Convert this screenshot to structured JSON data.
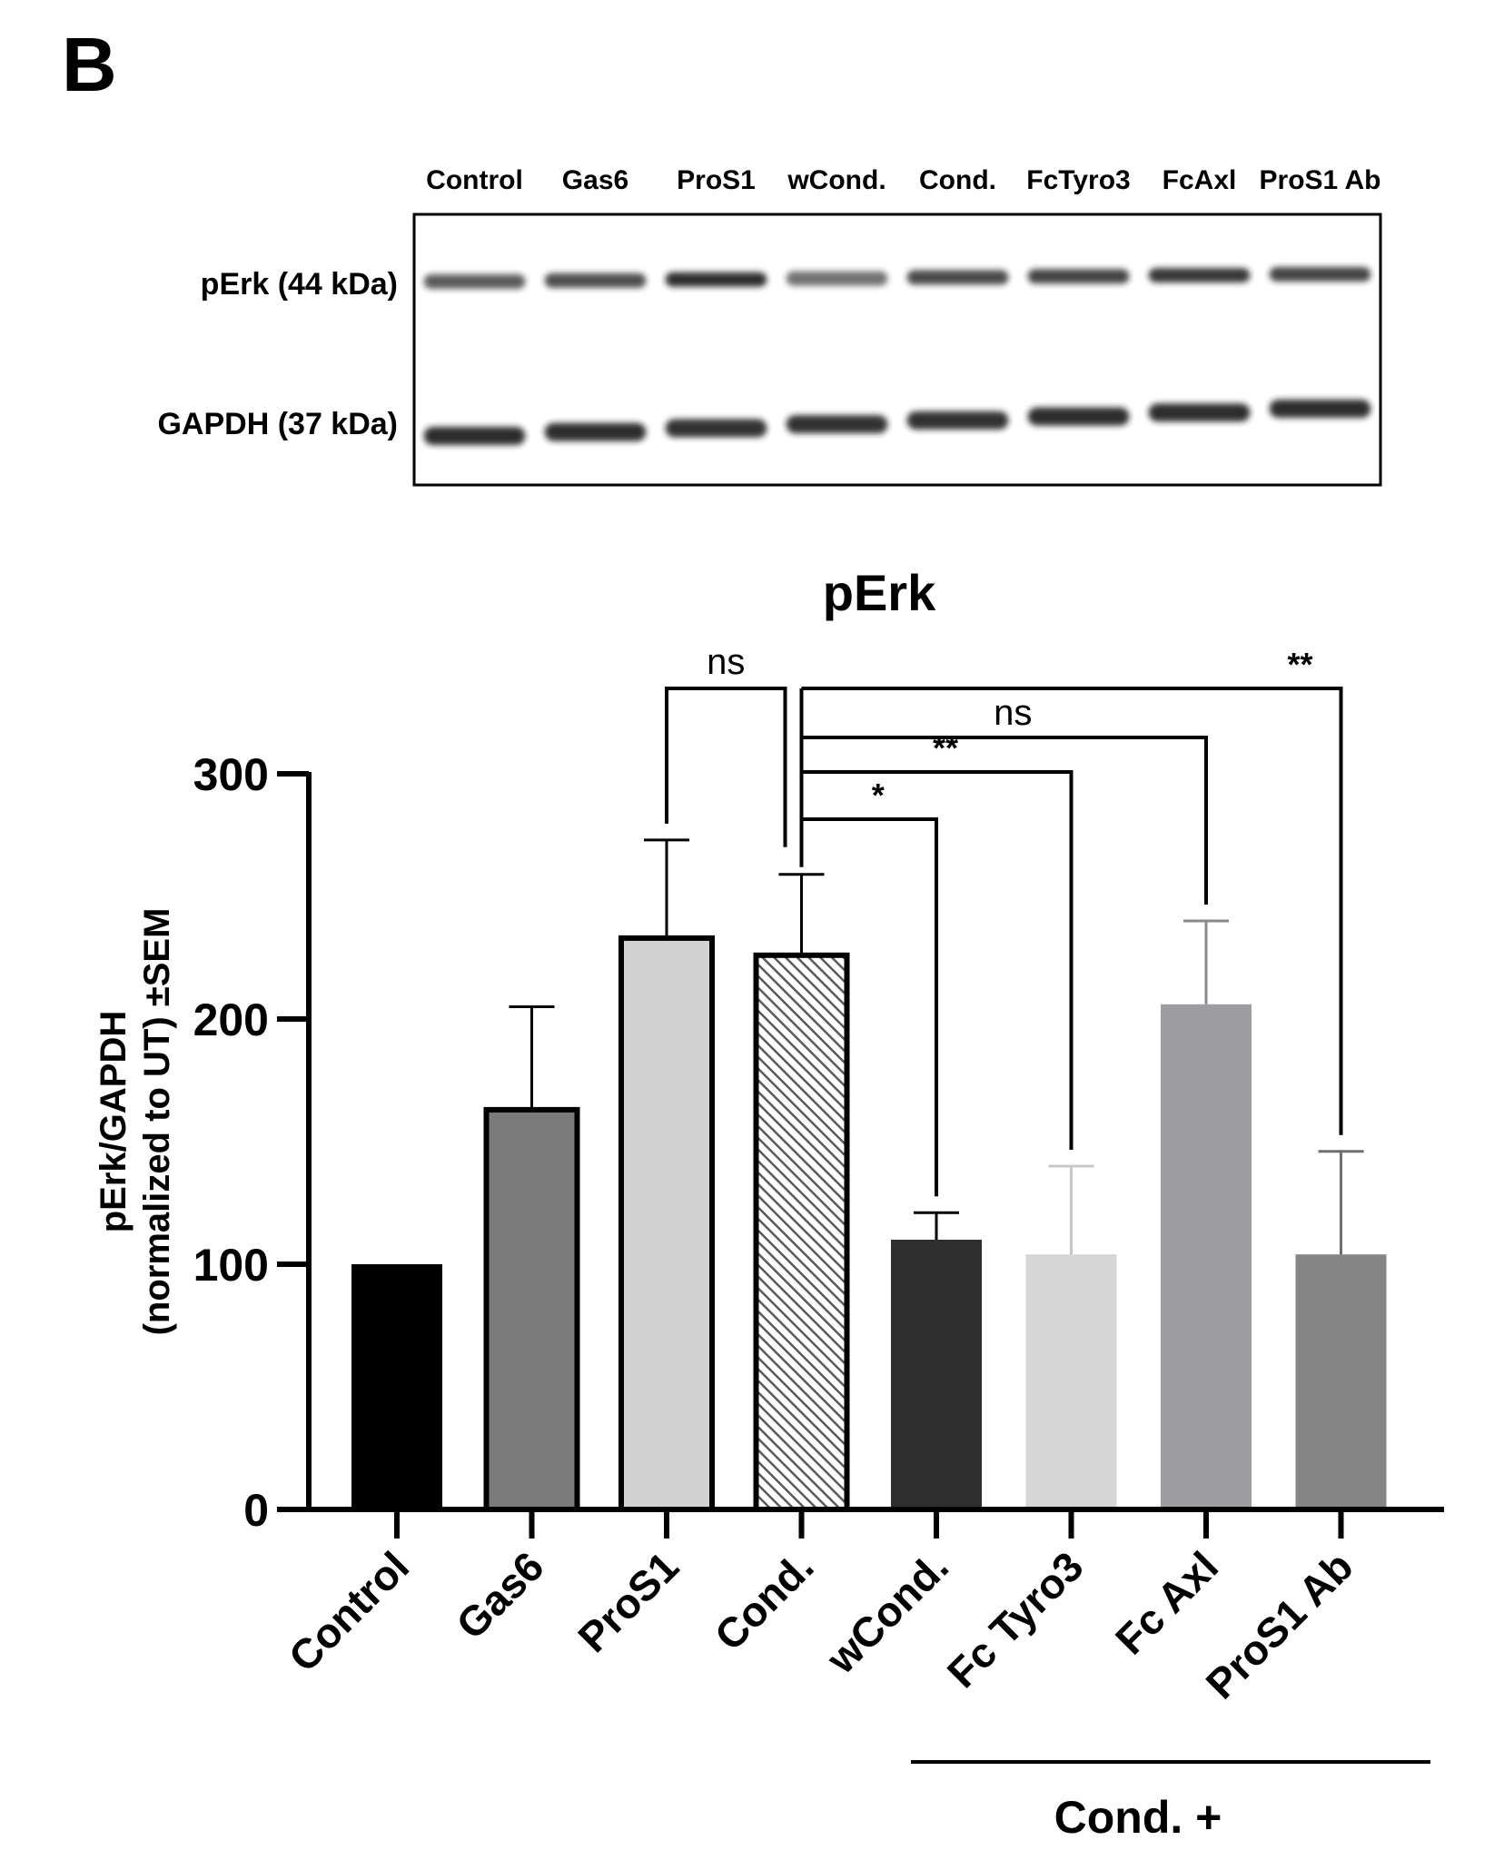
{
  "panel_label": "B",
  "colors": {
    "ink": "#000000",
    "control": "#000000",
    "gas6": "#7b7b7b",
    "pros1": "#d2d2d2",
    "cond_hatch_bg": "#ffffff",
    "cond_hatch_line": "#5a5a5a",
    "wcond": "#2e2e2e",
    "fctyro3": "#d6d6d6",
    "fcaxl": "#9e9ea2",
    "pros1ab": "#858585",
    "blot_band": "#1e1e1e"
  },
  "blot": {
    "lanes": [
      "Control",
      "Gas6",
      "ProS1",
      "wCond.",
      "Cond.",
      "FcTyro3",
      "FcAxl",
      "ProS1 Ab"
    ],
    "rows": [
      {
        "label": "pErk (44 kDa)",
        "intensity": [
          0.72,
          0.78,
          0.92,
          0.62,
          0.8,
          0.82,
          0.88,
          0.82
        ]
      },
      {
        "label": "GAPDH (37 kDa)",
        "intensity": [
          0.92,
          0.92,
          0.9,
          0.9,
          0.9,
          0.92,
          0.92,
          0.92
        ]
      }
    ]
  },
  "chart_data": {
    "type": "bar",
    "title": "pErk",
    "ylabel_line1": "pErk/GAPDH",
    "ylabel_line2": "(normalized to UT) ±SEM",
    "ylim": [
      0,
      300
    ],
    "yticks": [
      0,
      100,
      200,
      300
    ],
    "categories": [
      "Control",
      "Gas6",
      "ProS1",
      "Cond.",
      "wCond.",
      "Fc Tyro3",
      "Fc Axl",
      "ProS1 Ab"
    ],
    "values": [
      100,
      163,
      233,
      226,
      110,
      104,
      206,
      104
    ],
    "sem": [
      0,
      42,
      40,
      33,
      11,
      36,
      34,
      42
    ],
    "group_label": "Cond. +",
    "significance": [
      {
        "from": "ProS1",
        "to": "Cond.",
        "label": "ns"
      },
      {
        "from": "Cond.",
        "to": "wCond.",
        "label": "*"
      },
      {
        "from": "Cond.",
        "to": "Fc Tyro3",
        "label": "**"
      },
      {
        "from": "Cond.",
        "to": "Fc Axl",
        "label": "ns"
      },
      {
        "from": "Cond.",
        "to": "ProS1 Ab",
        "label": "**"
      }
    ]
  }
}
